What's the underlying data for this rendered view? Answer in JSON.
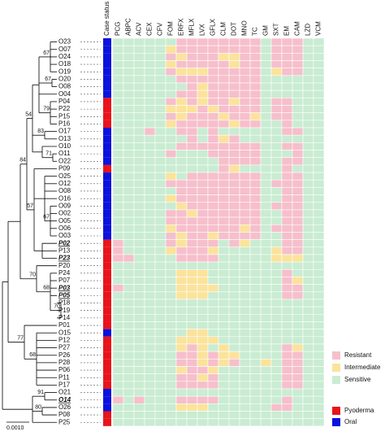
{
  "chart_data": {
    "type": "heatmap",
    "taxa": [
      "O23",
      "O07",
      "O24",
      "O18",
      "O19",
      "O20",
      "O08",
      "O04",
      "P04",
      "P22",
      "P15",
      "P16",
      "O17",
      "O13",
      "O10",
      "O11",
      "O22",
      "P09",
      "O25",
      "O12",
      "O08",
      "O16",
      "O09",
      "O02",
      "O05",
      "O06",
      "O03",
      "P02",
      "P13",
      "P23",
      "P20",
      "P24",
      "P07",
      "P03",
      "P05",
      "P18",
      "P19",
      "P14",
      "P01",
      "O15",
      "P12",
      "P27",
      "P26",
      "P28",
      "P06",
      "P11",
      "P17",
      "O21",
      "O14",
      "O26",
      "P08",
      "P25"
    ],
    "highlighted": [
      27,
      29,
      33,
      34,
      48
    ],
    "status_title": "Case status",
    "case_status": "OOOOOOOOPPPPOOOOOPOOOOOOOOOPPPPPPPPPPPPOPPPPPPPOOOPP",
    "antibiotics": [
      "PCG",
      "ABPC",
      "ACV",
      "CEX",
      "CFV",
      "FOM",
      "ERFX",
      "MFLX",
      "LVX",
      "GFLX",
      "CLM",
      "DOT",
      "MNO",
      "TC",
      "GM",
      "SXT",
      "EM",
      "CAM",
      "LZD",
      "VCM"
    ],
    "susceptibility": [
      "SSSSSSRRRRRRRRSRRRSS",
      "SSSSSIRRRRRRRRSRRRSS",
      "SSSSSRIRRRIIRRSRRRSS",
      "SSSSSIRRRRRIRRSRRRSS",
      "SSSSSRIIIRRRRRSIRRSS",
      "SSSSSSRRRRRRRRSSSSSS",
      "SSSSSSSRIRRRRRSSSSSS",
      "SSSSSSRRIRRRRRSSSSSS",
      "SSSSSRIRIRRIRRSRRSSS",
      "SSSSSIIIRIRRRRSRRSSS",
      "SSSSSRIRRRIRRISRRSSS",
      "SSSSSIRRRRRIRRSSRSSS",
      "SSSRSSRRSRSSSSSSRRSS",
      "SSSSSSSRSRIRSSSSSSSS",
      "SSSSSSRRRRRRRRSSRRSS",
      "SSSSSRSSSRRRRRSSSRSS",
      "SSSSSSSSSSRRRRSSRRSS",
      "SSSSSSSSSSRISSSSRSSS",
      "SSSSSISRRRRRRRSSRRSS",
      "SSSSSRRRRRRRRRSRRRSS",
      "SSSSSSRRRRRRRRSSRRSS",
      "SSSSSIRRRRRRRRSSRRSS",
      "SSSSSSIRRRRRRRSRRRSS",
      "SSSSSRRIRRRRRRSSRRSS",
      "SSSSSRRRRRRRRRSSRRSS",
      "SSSSSIRRRRRRIRSRRRSS",
      "SSSSSRIRRIRRRRSSRRSS",
      "RSSSSRIRRRSRISSSRRSS",
      "RSSSSIRRRISSSSSIRRSS",
      "RRSSSSRRRRSSSSSIIISS",
      "SSSSSSSSSSSSSSSSSSSS",
      "SSSSSSIIISSSSSSSRSSS",
      "SSSSSSIIISSSSSSSRISS",
      "RSSSSSIIIISSSSSSRRSS",
      "SSSSSSIIISSSSSSSRRSS",
      "SSSSSSSSSSSSSSSSSSSS",
      "SSSSSSSSSSSSSSSSSSSS",
      "SSSSSSSSSSSSSSSSSSSS",
      "SSSSSSSSSSSSSSSSSSSS",
      "SSSSSSSIISSSSSSSSSSS",
      "SSSSSSIIIISSSSSSSSSS",
      "SSSSSSIRISISSSSSRISS",
      "SSSSSSRRIRIISSSSRRSS",
      "SSSSSSRRIRIRSSISRRSS",
      "SSSSSSIRRISSSSSSRRSS",
      "SSSSSSRRIRSSSSSSRRSS",
      "SSSSSSRRRRSSSSSSRRSS",
      "SSSSSSSSSSSSSSSSSSSS",
      "RSRSSSRRRRSSSSSSRSSS",
      "SSSSSSIIISSSSSSRRSSS",
      "SSSSSSSSSSSSSSSSSSSS",
      "SSSSSSSSSSSSSSSSSSSS"
    ],
    "legend_susceptibility": [
      {
        "key": "R",
        "label": "Resistant",
        "color": "#f6bfcb"
      },
      {
        "key": "I",
        "label": "Intermediate",
        "color": "#fbe39b"
      },
      {
        "key": "S",
        "label": "Sensitive",
        "color": "#c9ecd2"
      }
    ],
    "legend_status": [
      {
        "key": "P",
        "label": "Pyoderma",
        "color": "#e8141c"
      },
      {
        "key": "O",
        "label": "Oral",
        "color": "#0b12dc"
      }
    ],
    "bootstrap": [
      67,
      67,
      79,
      83,
      54,
      71,
      57,
      84,
      67,
      70,
      68,
      70,
      77,
      68,
      91,
      80
    ],
    "scale_bar": "0.0010"
  }
}
